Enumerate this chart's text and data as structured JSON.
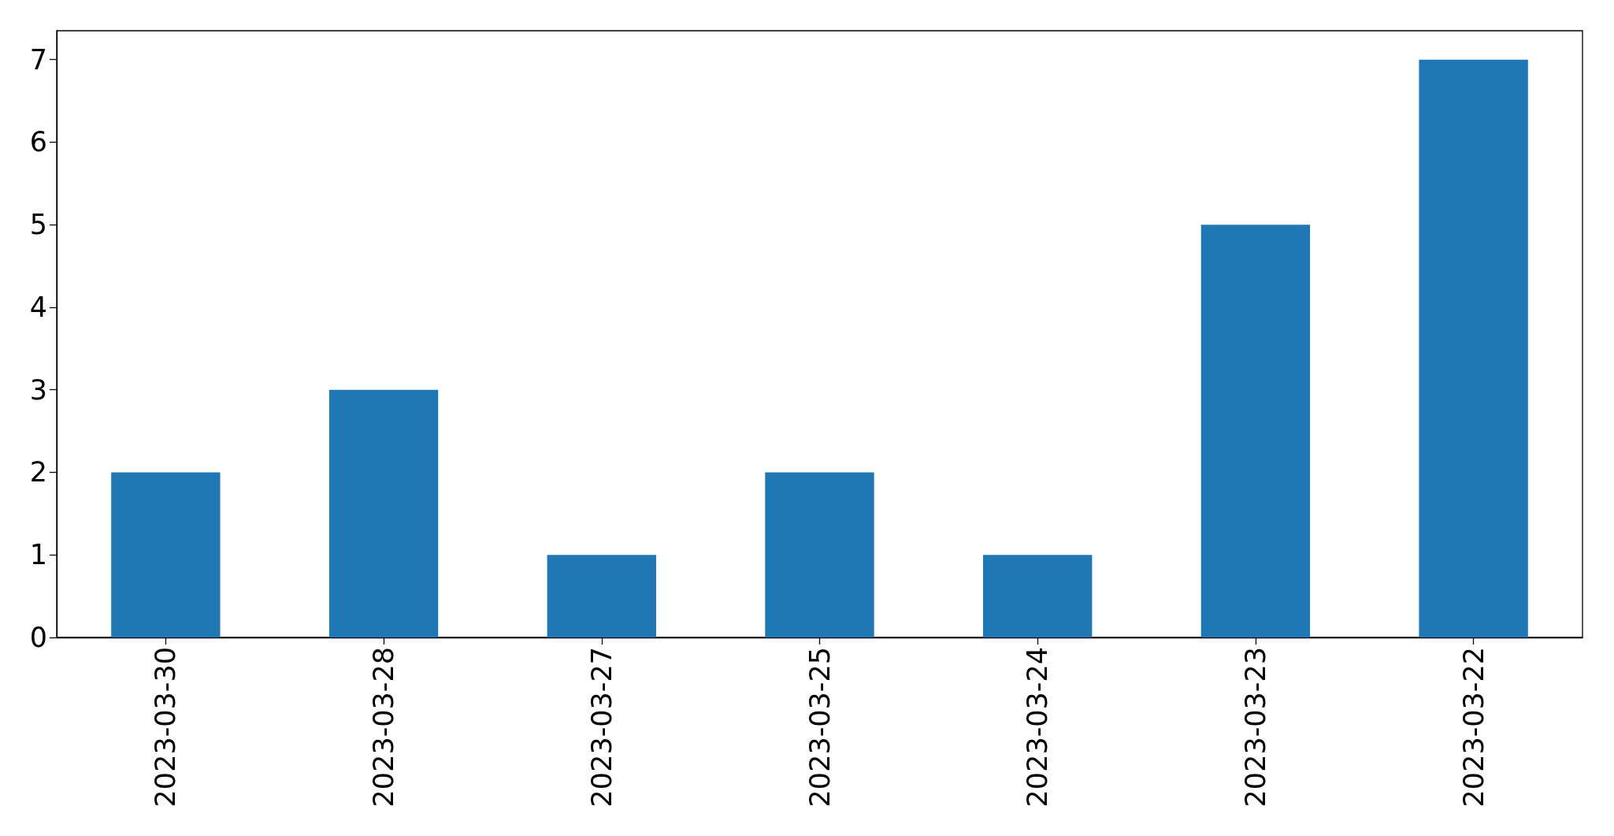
{
  "chart_data": {
    "type": "bar",
    "categories": [
      "2023-03-30",
      "2023-03-28",
      "2023-03-27",
      "2023-03-25",
      "2023-03-24",
      "2023-03-23",
      "2023-03-22"
    ],
    "values": [
      2,
      3,
      1,
      2,
      1,
      5,
      7
    ],
    "color": "#1f77b4",
    "ylim": [
      0,
      7.35
    ],
    "yticks": [
      0,
      1,
      2,
      3,
      4,
      5,
      6,
      7
    ]
  }
}
